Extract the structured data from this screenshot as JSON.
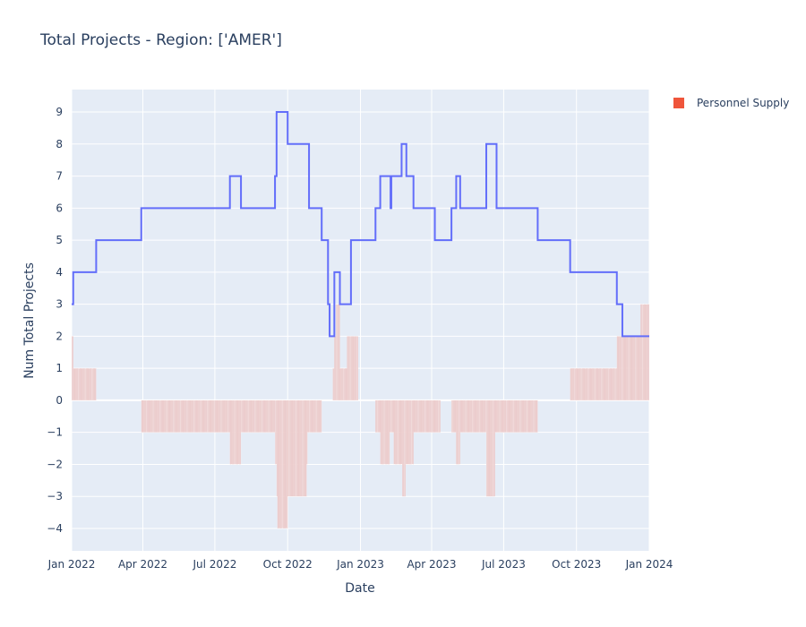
{
  "chart_data": {
    "type": "bar+line",
    "title": "Total Projects - Region: ['AMER']",
    "xlabel": "Date",
    "ylabel": "Num Total Projects",
    "x_range": [
      "2022-01-01",
      "2024-01-01"
    ],
    "ylim": [
      -4.7,
      9.7
    ],
    "y_ticks": [
      -4,
      -3,
      -2,
      -1,
      0,
      1,
      2,
      3,
      4,
      5,
      6,
      7,
      8,
      9
    ],
    "x_ticks": [
      {
        "date": "2022-01-01",
        "label": "Jan 2022"
      },
      {
        "date": "2022-04-01",
        "label": "Apr 2022"
      },
      {
        "date": "2022-07-01",
        "label": "Jul 2022"
      },
      {
        "date": "2022-10-01",
        "label": "Oct 2022"
      },
      {
        "date": "2023-01-01",
        "label": "Jan 2023"
      },
      {
        "date": "2023-04-01",
        "label": "Apr 2023"
      },
      {
        "date": "2023-07-01",
        "label": "Jul 2023"
      },
      {
        "date": "2023-10-01",
        "label": "Oct 2023"
      },
      {
        "date": "2024-01-01",
        "label": "Jan 2024"
      }
    ],
    "grid": true,
    "legend_position": "top-right",
    "colors": {
      "plot_bg": "#e5ecf6",
      "grid": "#ffffff",
      "line": "#636efa",
      "bar_fill": "#e8c0c0",
      "bar_stroke": "#ffffff",
      "legend_marker": "#ef553b"
    },
    "series": [
      {
        "name": "Personnel Supply",
        "type": "bar",
        "steps": [
          [
            "2022-01-01",
            2
          ],
          [
            "2022-01-03",
            1
          ],
          [
            "2022-02-01",
            0
          ],
          [
            "2022-03-30",
            -1
          ],
          [
            "2022-07-20",
            -2
          ],
          [
            "2022-08-03",
            -1
          ],
          [
            "2022-09-15",
            -2
          ],
          [
            "2022-09-17",
            -3
          ],
          [
            "2022-09-18",
            -4
          ],
          [
            "2022-10-01",
            -3
          ],
          [
            "2022-10-25",
            -2
          ],
          [
            "2022-10-26",
            -1
          ],
          [
            "2022-11-13",
            0
          ],
          [
            "2022-11-27",
            1
          ],
          [
            "2022-11-29",
            2
          ],
          [
            "2022-12-01",
            3
          ],
          [
            "2022-12-06",
            1
          ],
          [
            "2022-12-15",
            2
          ],
          [
            "2022-12-29",
            0
          ],
          [
            "2023-01-20",
            -1
          ],
          [
            "2023-01-26",
            -2
          ],
          [
            "2023-02-07",
            -1
          ],
          [
            "2023-02-12",
            -2
          ],
          [
            "2023-02-23",
            -3
          ],
          [
            "2023-02-27",
            -2
          ],
          [
            "2023-03-09",
            -1
          ],
          [
            "2023-04-12",
            0
          ],
          [
            "2023-04-26",
            -1
          ],
          [
            "2023-05-02",
            -2
          ],
          [
            "2023-05-07",
            -1
          ],
          [
            "2023-06-09",
            -3
          ],
          [
            "2023-06-20",
            -1
          ],
          [
            "2023-08-13",
            0
          ],
          [
            "2023-09-23",
            1
          ],
          [
            "2023-11-21",
            2
          ],
          [
            "2023-12-21",
            3
          ]
        ]
      },
      {
        "name": "Total Projects",
        "type": "line-step",
        "steps": [
          [
            "2022-01-01",
            3
          ],
          [
            "2022-01-03",
            4
          ],
          [
            "2022-02-01",
            5
          ],
          [
            "2022-03-30",
            6
          ],
          [
            "2022-07-20",
            7
          ],
          [
            "2022-08-03",
            6
          ],
          [
            "2022-09-15",
            7
          ],
          [
            "2022-09-17",
            9
          ],
          [
            "2022-10-01",
            8
          ],
          [
            "2022-10-28",
            6
          ],
          [
            "2022-11-13",
            5
          ],
          [
            "2022-11-21",
            3
          ],
          [
            "2022-11-23",
            2
          ],
          [
            "2022-11-29",
            4
          ],
          [
            "2022-12-06",
            3
          ],
          [
            "2022-12-20",
            5
          ],
          [
            "2023-01-20",
            6
          ],
          [
            "2023-01-26",
            7
          ],
          [
            "2023-02-08",
            6
          ],
          [
            "2023-02-09",
            7
          ],
          [
            "2023-02-22",
            8
          ],
          [
            "2023-02-28",
            7
          ],
          [
            "2023-03-09",
            6
          ],
          [
            "2023-04-05",
            5
          ],
          [
            "2023-04-26",
            6
          ],
          [
            "2023-05-02",
            7
          ],
          [
            "2023-05-07",
            6
          ],
          [
            "2023-06-09",
            8
          ],
          [
            "2023-06-22",
            6
          ],
          [
            "2023-08-13",
            5
          ],
          [
            "2023-09-23",
            4
          ],
          [
            "2023-11-21",
            3
          ],
          [
            "2023-11-28",
            2
          ]
        ],
        "end": "2024-01-01"
      }
    ],
    "legend": [
      {
        "name": "Personnel Supply"
      }
    ]
  }
}
